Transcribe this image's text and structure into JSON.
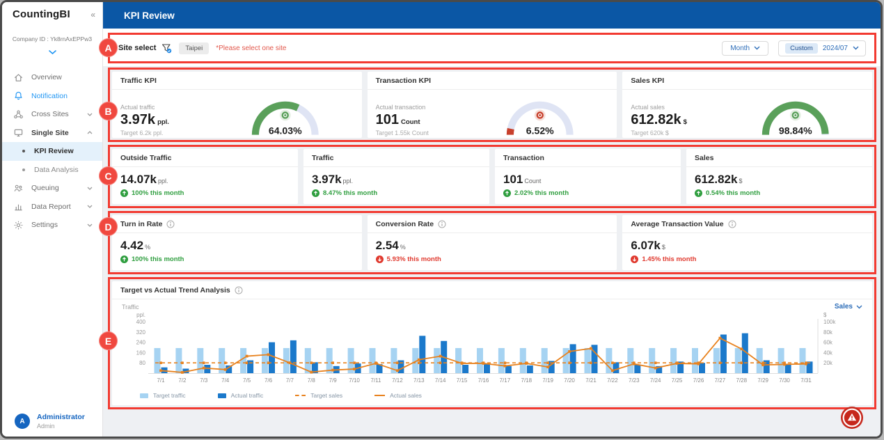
{
  "colors": {
    "header_blue": "#0b57a5",
    "accent_blue": "#2196f3",
    "annotation_red": "#f23a31",
    "positive_green": "#2f9e3f",
    "negative_red": "#e03a2f",
    "gauge_track": "#dfe4f4",
    "bar_target_blue": "#a6d3f2",
    "bar_actual_blue": "#1b79cb",
    "sales_orange": "#e8821e"
  },
  "sidebar": {
    "brand": "CountingBI",
    "collapse_icon": "«",
    "company_id": "Company ID : Yk8rnAxEPPw3",
    "items": [
      {
        "label": "Overview"
      },
      {
        "label": "Notification"
      },
      {
        "label": "Cross Sites"
      },
      {
        "label": "Single Site"
      },
      {
        "label": "KPI Review"
      },
      {
        "label": "Data Analysis"
      },
      {
        "label": "Queuing"
      },
      {
        "label": "Data Report"
      },
      {
        "label": "Settings"
      }
    ],
    "user": {
      "name": "Administrator",
      "role": "Admin",
      "avatar_initial": "A"
    }
  },
  "header": {
    "title": "KPI Review"
  },
  "filters": {
    "site_select_label": "Site select",
    "site_tag": "Taipei",
    "warning": "*Please select one site",
    "period": "Month",
    "custom_label": "Custom",
    "date": "2024/07"
  },
  "annotations": {
    "a": "A",
    "b": "B",
    "c": "C",
    "d": "D",
    "e": "E"
  },
  "gauge_scale": {
    "min": "0%",
    "max": "100%"
  },
  "kpi_gauges": [
    {
      "title": "Traffic KPI",
      "metric_label": "Actual traffic",
      "value": "3.97k",
      "unit": "ppl.",
      "target": "Target 6.2k ppl.",
      "percent_label": "64.03%",
      "percent_value": 64.03,
      "color": "#5aa05a",
      "color_light": "#e4efe2"
    },
    {
      "title": "Transaction KPI",
      "metric_label": "Actual transaction",
      "value": "101",
      "unit": "Count",
      "target": "Target 1.55k Count",
      "percent_label": "6.52%",
      "percent_value": 6.52,
      "color": "#c8402c",
      "color_light": "#f6ded8"
    },
    {
      "title": "Sales KPI",
      "metric_label": "Actual sales",
      "value": "612.82k",
      "unit": "$",
      "target": "Target 620k $",
      "percent_label": "98.84%",
      "percent_value": 98.84,
      "color": "#5aa05a",
      "color_light": "#e4efe2"
    }
  ],
  "metric_cards": [
    {
      "title": "Outside Traffic",
      "value": "14.07k",
      "unit": "ppl.",
      "change": "100% this month",
      "trend": "up"
    },
    {
      "title": "Traffic",
      "value": "3.97k",
      "unit": "ppl.",
      "change": "8.47% this month",
      "trend": "up"
    },
    {
      "title": "Transaction",
      "value": "101",
      "unit": "Count",
      "change": "2.02% this month",
      "trend": "up"
    },
    {
      "title": "Sales",
      "value": "612.82k",
      "unit": "$",
      "change": "0.54% this month",
      "trend": "up"
    }
  ],
  "rate_cards": [
    {
      "title": "Turn in Rate",
      "value": "4.42",
      "unit": "%",
      "change": "100% this month",
      "trend": "up"
    },
    {
      "title": "Conversion Rate",
      "value": "2.54",
      "unit": "%",
      "change": "5.93% this month",
      "trend": "down"
    },
    {
      "title": "Average Transaction Value",
      "value": "6.07k",
      "unit": "$",
      "change": "1.45% this month",
      "trend": "down"
    }
  ],
  "trend_card": {
    "title": "Target vs Actual Trend Analysis",
    "left_label": "Traffic",
    "right_selector": "Sales"
  },
  "chart_data": {
    "type": "combo bar+line, dual axis",
    "categories": [
      "7/1",
      "7/2",
      "7/3",
      "7/4",
      "7/5",
      "7/6",
      "7/7",
      "7/8",
      "7/9",
      "7/10",
      "7/11",
      "7/12",
      "7/13",
      "7/14",
      "7/15",
      "7/16",
      "7/17",
      "7/18",
      "7/19",
      "7/20",
      "7/21",
      "7/22",
      "7/23",
      "7/24",
      "7/25",
      "7/26",
      "7/27",
      "7/28",
      "7/29",
      "7/30",
      "7/31"
    ],
    "left_axis": {
      "unit": "ppl.",
      "max": 400,
      "ticks": [
        80,
        160,
        240,
        320,
        400
      ]
    },
    "right_axis": {
      "unit": "$",
      "max": 100000,
      "ticks": [
        {
          "value": 20000,
          "label": "20k"
        },
        {
          "value": 40000,
          "label": "40k"
        },
        {
          "value": 60000,
          "label": "60k"
        },
        {
          "value": 80000,
          "label": "80k"
        },
        {
          "value": 100000,
          "label": "100k"
        }
      ]
    },
    "series": [
      {
        "name": "Target traffic",
        "type": "bar",
        "axis": "left",
        "color": "#a6d3f2",
        "constant_value": 195
      },
      {
        "name": "Actual traffic",
        "type": "bar",
        "axis": "left",
        "color": "#1b79cb",
        "values": [
          45,
          35,
          65,
          60,
          100,
          240,
          255,
          85,
          55,
          75,
          70,
          100,
          290,
          250,
          65,
          70,
          55,
          60,
          95,
          225,
          220,
          85,
          65,
          55,
          90,
          80,
          300,
          310,
          100,
          70,
          90
        ]
      },
      {
        "name": "Target sales",
        "type": "dashed-line",
        "axis": "right",
        "color": "#e8821e",
        "constant_value": 20000
      },
      {
        "name": "Actual sales",
        "type": "line",
        "axis": "right",
        "color": "#e8821e",
        "values": [
          5000,
          1500,
          10000,
          7000,
          33000,
          36000,
          20000,
          2000,
          6000,
          8000,
          19000,
          5000,
          26000,
          33000,
          19000,
          19000,
          14000,
          19000,
          12000,
          42000,
          48000,
          5000,
          18000,
          10000,
          19000,
          18000,
          68000,
          47000,
          16000,
          17000,
          18000
        ]
      }
    ],
    "legend": [
      {
        "label": "Target traffic",
        "swatch": "rect",
        "color": "#a6d3f2"
      },
      {
        "label": "Actual traffic",
        "swatch": "rect",
        "color": "#1b79cb"
      },
      {
        "label": "Target sales",
        "swatch": "dash",
        "color": "#e8821e"
      },
      {
        "label": "Actual sales",
        "swatch": "line",
        "color": "#e8821e"
      }
    ]
  }
}
